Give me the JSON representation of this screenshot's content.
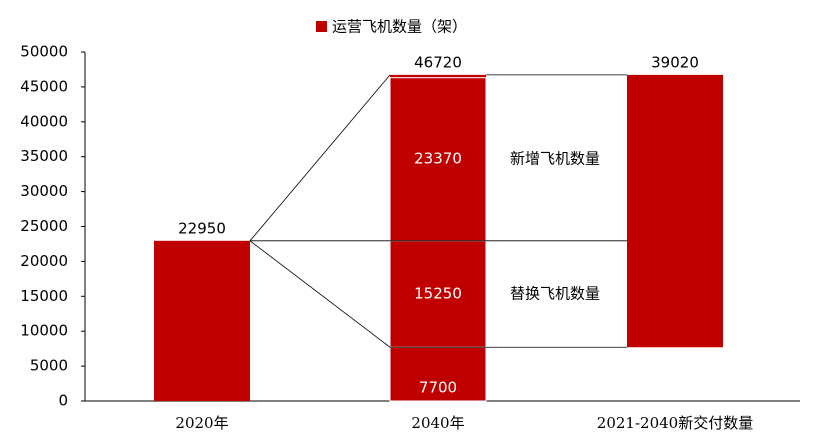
{
  "chart_data": {
    "type": "waterfall",
    "categories": [
      "2020年",
      "2040年",
      "2021-2040新交付数量"
    ],
    "series": [
      {
        "name": "运营飞机数量（架）",
        "color": "#c00000",
        "values": [
          22950,
          46720,
          39020
        ]
      }
    ],
    "breakdown": {
      "values": [
        7700,
        15250,
        23370
      ],
      "annotations": [
        null,
        "替换飞机数量",
        "新增飞机数量"
      ]
    },
    "ylim": [
      0,
      50000
    ],
    "yticks": [
      0,
      5000,
      10000,
      15000,
      20000,
      25000,
      30000,
      35000,
      40000,
      45000,
      50000
    ]
  }
}
